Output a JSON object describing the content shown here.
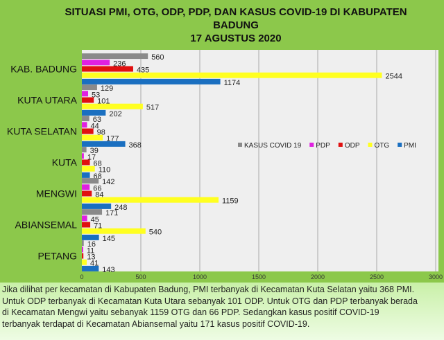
{
  "chart_data": {
    "type": "bar",
    "orientation": "horizontal",
    "title": "SITUASI PMI, OTG, ODP, PDP, DAN KASUS COVID-19 DI KABUPATEN BADUNG",
    "subtitle": "17 AGUSTUS 2020",
    "categories": [
      "KAB. BADUNG",
      "KUTA UTARA",
      "KUTA SELATAN",
      "KUTA",
      "MENGWI",
      "ABIANSEMAL",
      "PETANG"
    ],
    "series": [
      {
        "name": "KASUS COVID 19",
        "color": "#8a8a8a",
        "values": [
          560,
          129,
          63,
          39,
          142,
          171,
          16
        ]
      },
      {
        "name": "PDP",
        "color": "#e020e0",
        "values": [
          236,
          53,
          44,
          17,
          66,
          45,
          11
        ]
      },
      {
        "name": "ODP",
        "color": "#e01010",
        "values": [
          435,
          101,
          98,
          68,
          84,
          71,
          13
        ]
      },
      {
        "name": "OTG",
        "color": "#ffff20",
        "values": [
          2544,
          517,
          177,
          110,
          1159,
          540,
          41
        ]
      },
      {
        "name": "PMI",
        "color": "#1a6fc0",
        "values": [
          1174,
          202,
          368,
          68,
          248,
          145,
          143
        ]
      }
    ],
    "xlim": [
      0,
      3000
    ],
    "xticks": [
      "0",
      "500",
      "1000",
      "1500",
      "2000",
      "2500",
      "3000"
    ],
    "grid": true,
    "legend": "right-middle"
  },
  "caption": [
    "Jika dilihat per kecamatan di Kabupaten Badung, PMI terbanyak di Kecamatan Kuta Selatan yaitu 368 PMI.",
    "Untuk ODP terbanyak di Kecamatan Kuta Utara sebanyak 101 ODP. Untuk OTG dan PDP terbanyak berada",
    "di Kecamatan Mengwi yaitu sebanyak 1159 OTG dan 66 PDP. Sedangkan  kasus positif COVID-19",
    "terbanyak terdapat di Kecamatan Abiansemal yaitu 171 kasus positif COVID-19."
  ]
}
